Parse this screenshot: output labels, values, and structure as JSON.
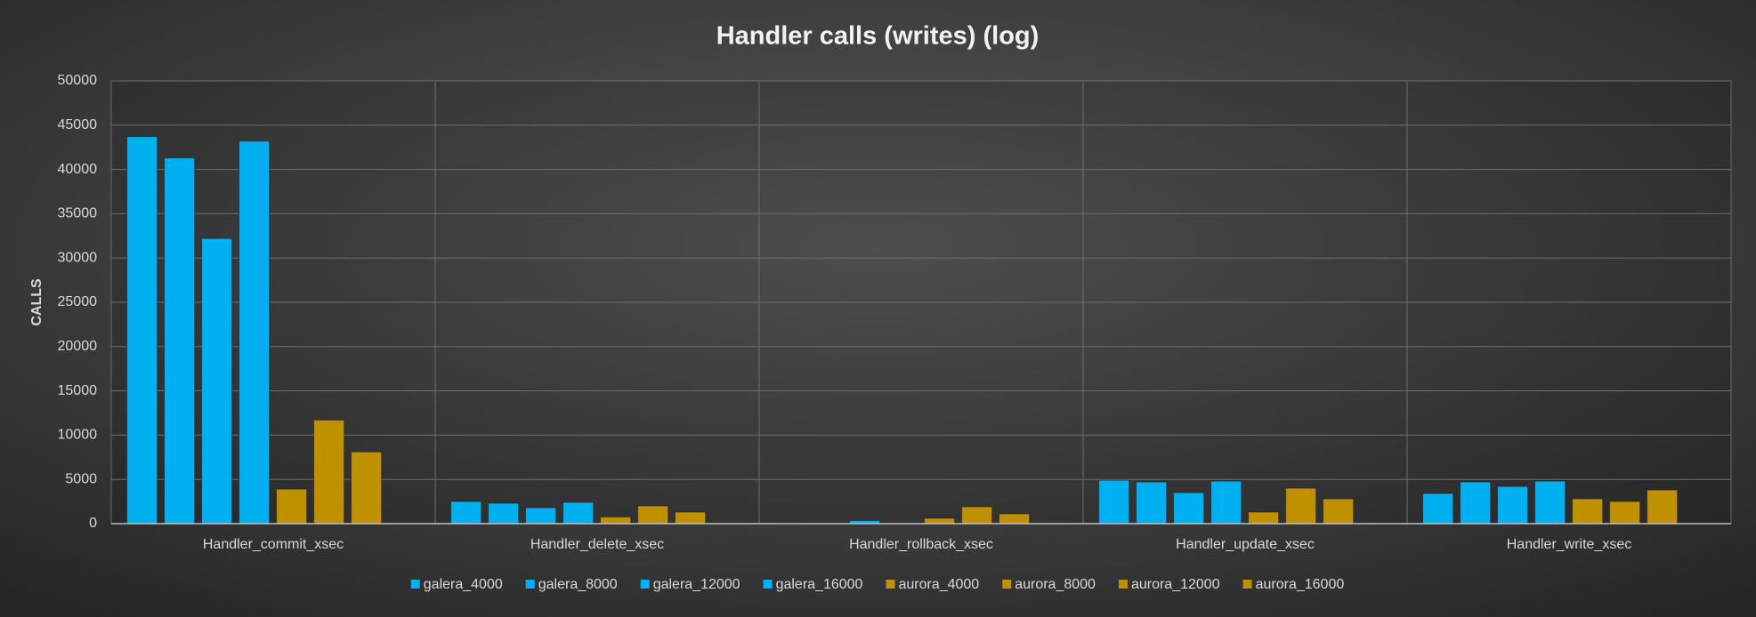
{
  "chart_data": {
    "type": "bar",
    "title": "Handler calls (writes) (log)",
    "y_label": "CALLS",
    "categories": [
      "Handler_commit_xsec",
      "Handler_delete_xsec",
      "Handler_rollback_xsec",
      "Handler_update_xsec",
      "Handler_write_xsec"
    ],
    "series": [
      {
        "name": "galera_4000",
        "color": "#00b0f0",
        "values": [
          43700,
          2500,
          50,
          4900,
          3400
        ]
      },
      {
        "name": "galera_8000",
        "color": "#00b0f0",
        "values": [
          41300,
          2300,
          80,
          4700,
          4700
        ]
      },
      {
        "name": "galera_12000",
        "color": "#00b0f0",
        "values": [
          32200,
          1800,
          350,
          3500,
          4200
        ]
      },
      {
        "name": "galera_16000",
        "color": "#00b0f0",
        "values": [
          43200,
          2400,
          0,
          4800,
          4800
        ]
      },
      {
        "name": "aurora_4000",
        "color": "#bf9000",
        "values": [
          3900,
          750,
          600,
          1300,
          2800
        ]
      },
      {
        "name": "aurora_8000",
        "color": "#bf9000",
        "values": [
          11700,
          2000,
          1900,
          4000,
          2500
        ]
      },
      {
        "name": "aurora_12000",
        "color": "#bf9000",
        "values": [
          8100,
          1300,
          1100,
          2800,
          3800
        ]
      },
      {
        "name": "aurora_16000",
        "color": "#bf9000",
        "values": [
          null,
          null,
          null,
          null,
          null
        ]
      }
    ],
    "ylim": [
      0,
      50000
    ],
    "yticks": [
      0,
      5000,
      10000,
      15000,
      20000,
      25000,
      30000,
      35000,
      40000,
      45000,
      50000
    ],
    "grid": true,
    "legend": "bottom"
  }
}
